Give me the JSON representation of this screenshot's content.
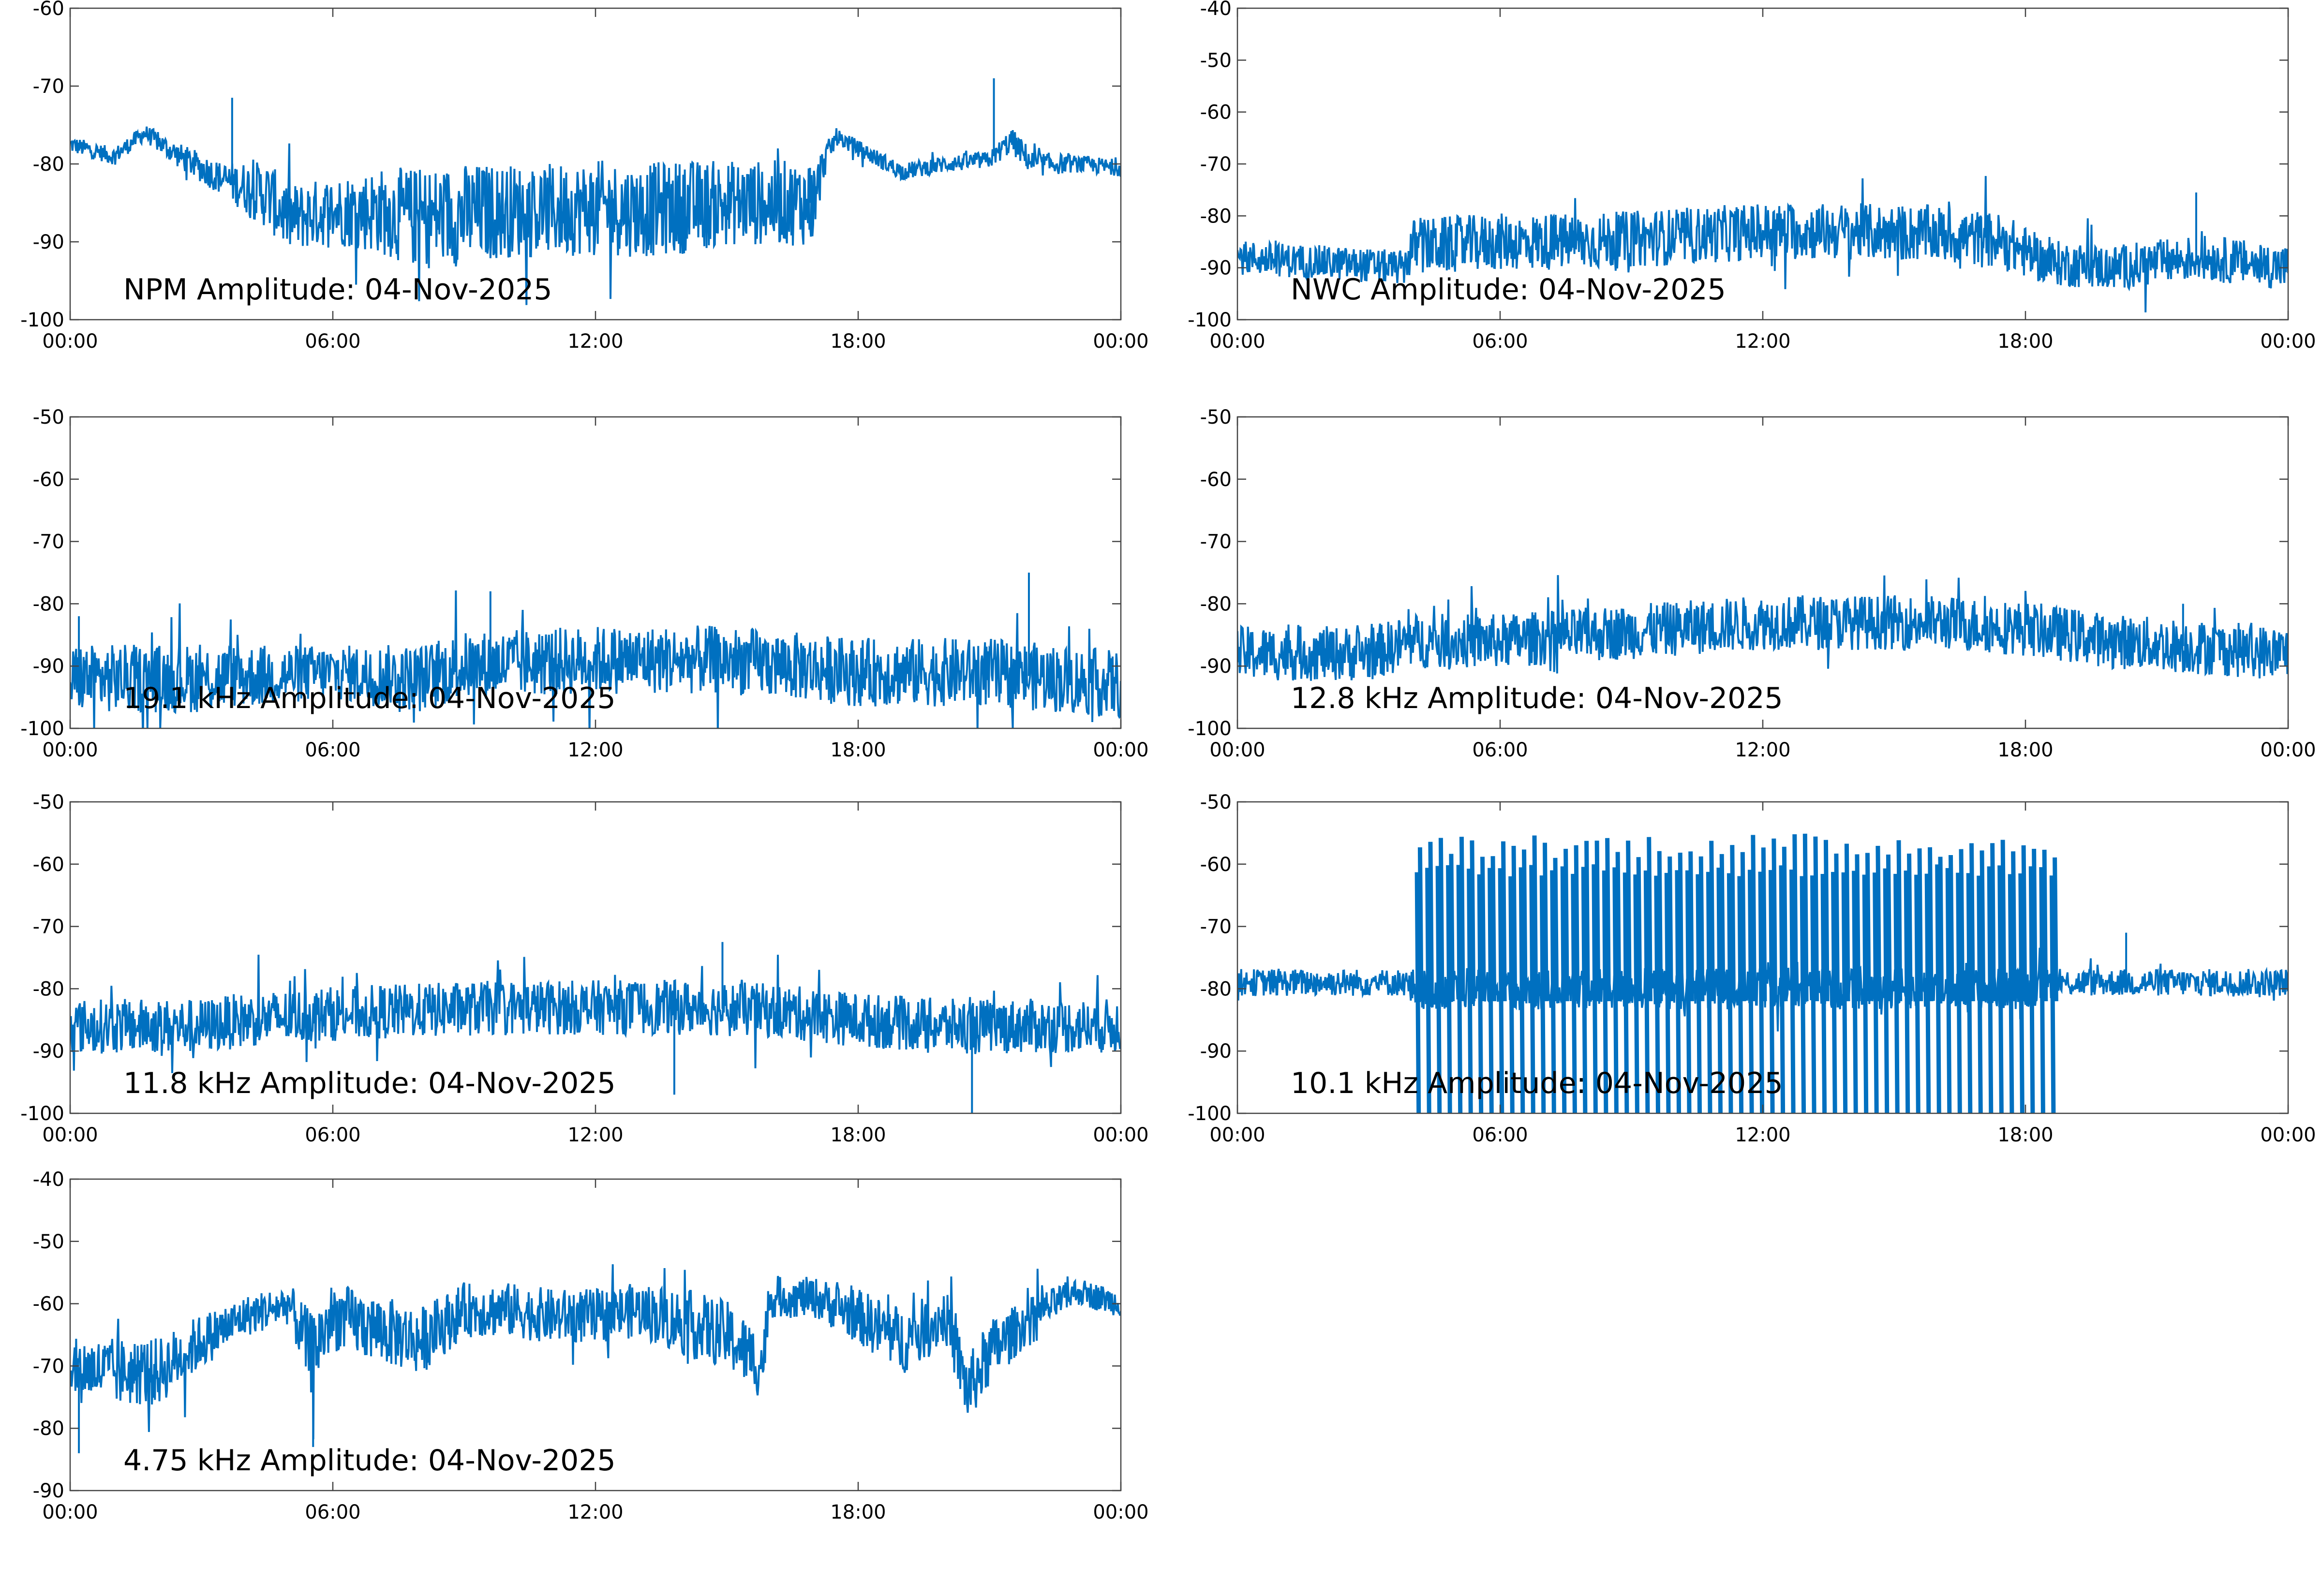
{
  "style": {
    "line_color": "#0070c0",
    "axis_color": "#444444",
    "text_color": "#000000"
  },
  "chart_data": [
    {
      "id": "npm",
      "type": "line",
      "title": "NPM Amplitude: 04-Nov-2025",
      "xticks": [
        "00:00",
        "06:00",
        "12:00",
        "18:00",
        "00:00"
      ],
      "xlim": [
        0,
        24
      ],
      "ylim": [
        -100,
        -60
      ],
      "yticks": [
        "-60",
        "-70",
        "-80",
        "-90",
        "-100"
      ],
      "series": [
        {
          "name": "NPM",
          "x": [
            0,
            1,
            1.7,
            2.5,
            3.5,
            4.5,
            5,
            6,
            7,
            8,
            9,
            10,
            11,
            12,
            13,
            14,
            15,
            16,
            17,
            17.2,
            17.5,
            18,
            19,
            20,
            21,
            21.5,
            22,
            23,
            24
          ],
          "center": [
            -77.5,
            -79,
            -76,
            -79,
            -82,
            -84,
            -87,
            -86,
            -86,
            -87,
            -86.5,
            -86,
            -86,
            -85.5,
            -86,
            -85.5,
            -85,
            -85,
            -85,
            -80,
            -76.5,
            -78,
            -81,
            -80,
            -79.5,
            -77,
            -80,
            -80,
            -80.5
          ],
          "spread": [
            1,
            1,
            1,
            1.5,
            2,
            4,
            4,
            4,
            5,
            6,
            6,
            5.5,
            5.5,
            5.5,
            5.5,
            5.5,
            5,
            5,
            5,
            2,
            1,
            1,
            1,
            1,
            1,
            1.5,
            1.5,
            1,
            1
          ],
          "spikes": [
            [
              3.7,
              -71.5
            ],
            [
              21.1,
              -69
            ],
            [
              16.9,
              -80.5
            ]
          ]
        }
      ]
    },
    {
      "id": "nwc",
      "type": "line",
      "title": "NWC Amplitude: 04-Nov-2025",
      "xticks": [
        "00:00",
        "06:00",
        "12:00",
        "18:00",
        "00:00"
      ],
      "xlim": [
        0,
        24
      ],
      "ylim": [
        -100,
        -40
      ],
      "yticks": [
        "-40",
        "-50",
        "-60",
        "-70",
        "-80",
        "-90",
        "-100"
      ],
      "series": [
        {
          "name": "NWC",
          "x": [
            0,
            2,
            3.8,
            4,
            6,
            8,
            10,
            12,
            14,
            16,
            17.5,
            18.5,
            20,
            22,
            24
          ],
          "center": [
            -88,
            -89,
            -90,
            -86,
            -85,
            -85,
            -84,
            -83,
            -83,
            -83.5,
            -85,
            -89,
            -90,
            -88,
            -90
          ],
          "spread": [
            3,
            3,
            3,
            5,
            5,
            5,
            5,
            5,
            5,
            5,
            5,
            4,
            4,
            4,
            4
          ],
          "spikes": [
            [
              21.9,
              -75.5
            ]
          ]
        }
      ]
    },
    {
      "id": "f19_1",
      "type": "line",
      "title": "19.1 kHz Amplitude: 04-Nov-2025",
      "xticks": [
        "00:00",
        "06:00",
        "12:00",
        "18:00",
        "00:00"
      ],
      "xlim": [
        0,
        24
      ],
      "ylim": [
        -100,
        -50
      ],
      "yticks": [
        "-50",
        "-60",
        "-70",
        "-80",
        "-90",
        "-100"
      ],
      "series": [
        {
          "name": "19.1 kHz",
          "x": [
            0,
            3,
            6,
            8,
            9,
            12,
            15,
            18,
            21,
            24
          ],
          "center": [
            -92,
            -92,
            -91,
            -92,
            -90,
            -89,
            -89,
            -91,
            -91,
            -93
          ],
          "spread": [
            5,
            5,
            4,
            5,
            5,
            5,
            5,
            5,
            5,
            5
          ],
          "spikes": [
            [
              21.9,
              -75
            ],
            [
              9.6,
              -78
            ],
            [
              0.2,
              -82
            ]
          ]
        }
      ]
    },
    {
      "id": "f12_8",
      "type": "line",
      "title": "12.8 kHz Amplitude: 04-Nov-2025",
      "xticks": [
        "00:00",
        "06:00",
        "12:00",
        "18:00",
        "00:00"
      ],
      "xlim": [
        0,
        24
      ],
      "ylim": [
        -100,
        -50
      ],
      "yticks": [
        "-50",
        "-60",
        "-70",
        "-80",
        "-90",
        "-100"
      ],
      "series": [
        {
          "name": "12.8 kHz",
          "x": [
            0,
            3,
            4,
            6,
            8,
            10,
            12,
            14,
            16,
            18,
            20,
            22,
            24
          ],
          "center": [
            -88,
            -88,
            -86,
            -86,
            -85,
            -84,
            -83,
            -83,
            -83,
            -84,
            -86,
            -87,
            -88
          ],
          "spread": [
            4,
            4,
            4,
            4,
            4,
            4,
            4,
            4,
            4,
            4,
            4,
            4,
            4
          ],
          "spikes": [
            [
              21.6,
              -80
            ]
          ]
        }
      ]
    },
    {
      "id": "f11_8",
      "type": "line",
      "title": "11.8 kHz Amplitude: 04-Nov-2025",
      "xticks": [
        "00:00",
        "06:00",
        "12:00",
        "18:00",
        "00:00"
      ],
      "xlim": [
        0,
        24
      ],
      "ylim": [
        -100,
        -50
      ],
      "yticks": [
        "-50",
        "-60",
        "-70",
        "-80",
        "-90",
        "-100"
      ],
      "series": [
        {
          "name": "11.8 kHz",
          "x": [
            0,
            3,
            4,
            6,
            8,
            10,
            12,
            14,
            16,
            18,
            20,
            22,
            24
          ],
          "center": [
            -86,
            -86,
            -85,
            -84,
            -83.5,
            -83,
            -83,
            -83,
            -83.5,
            -85,
            -86,
            -86,
            -86
          ],
          "spread": [
            4,
            4,
            4,
            4,
            4,
            4,
            4,
            4,
            4,
            4,
            4,
            4,
            4
          ],
          "spikes": [
            [
              13.8,
              -97
            ],
            [
              20.6,
              -100
            ],
            [
              14.9,
              -72.5
            ]
          ]
        }
      ]
    },
    {
      "id": "f10_1",
      "type": "line",
      "title": "10.1 kHz Amplitude: 04-Nov-2025",
      "xticks": [
        "00:00",
        "06:00",
        "12:00",
        "18:00",
        "00:00"
      ],
      "xlim": [
        0,
        24
      ],
      "ylim": [
        -100,
        -50
      ],
      "yticks": [
        "-50",
        "-60",
        "-70",
        "-80",
        "-90",
        "-100"
      ],
      "series": [
        {
          "name": "10.1 kHz",
          "x": [
            0,
            2,
            3.8,
            4,
            6,
            9,
            12,
            15,
            18,
            18.7,
            20,
            22,
            24
          ],
          "center": [
            -79,
            -79,
            -79,
            -80,
            -80,
            -80,
            -80,
            -80,
            -80,
            -79,
            -79,
            -79,
            -79
          ],
          "spread": [
            2,
            2,
            2,
            3,
            3,
            3,
            3,
            3,
            3,
            2,
            2,
            2,
            2
          ],
          "spikes": [
            [
              18.4,
              -72
            ],
            [
              20.3,
              -71
            ]
          ],
          "bursts": {
            "start": 4.1,
            "end": 18.6,
            "count": 62,
            "top": -62,
            "bottom": -100
          }
        }
      ]
    },
    {
      "id": "f4_75",
      "type": "line",
      "title": "4.75 kHz Amplitude: 04-Nov-2025",
      "xticks": [
        "00:00",
        "06:00",
        "12:00",
        "18:00",
        "00:00"
      ],
      "xlim": [
        0,
        24
      ],
      "ylim": [
        -90,
        -40
      ],
      "yticks": [
        "-40",
        "-50",
        "-60",
        "-70",
        "-80",
        "-90"
      ],
      "series": [
        {
          "name": "4.75 kHz",
          "x": [
            0,
            1,
            2,
            3,
            4,
            5,
            5.5,
            6,
            7,
            8,
            9,
            10,
            11,
            12,
            13,
            14,
            15,
            15.8,
            16,
            17,
            18,
            19,
            20,
            20.5,
            21,
            22,
            23,
            24
          ],
          "center": [
            -70,
            -71,
            -71,
            -66,
            -62,
            -60,
            -68,
            -62,
            -64,
            -66,
            -61,
            -61,
            -62,
            -62,
            -61,
            -63,
            -65,
            -70,
            -59,
            -59,
            -62,
            -66,
            -62,
            -74,
            -68,
            -62,
            -58,
            -60
          ],
          "spread": [
            4,
            5,
            5,
            4,
            3,
            3,
            6,
            5,
            5,
            5,
            4,
            4,
            4,
            4,
            4,
            5,
            5,
            5,
            3,
            3,
            4,
            5,
            4,
            5,
            5,
            3,
            2,
            2
          ],
          "spikes": [
            [
              5.55,
              -83
            ],
            [
              0.2,
              -84
            ]
          ]
        }
      ]
    }
  ]
}
